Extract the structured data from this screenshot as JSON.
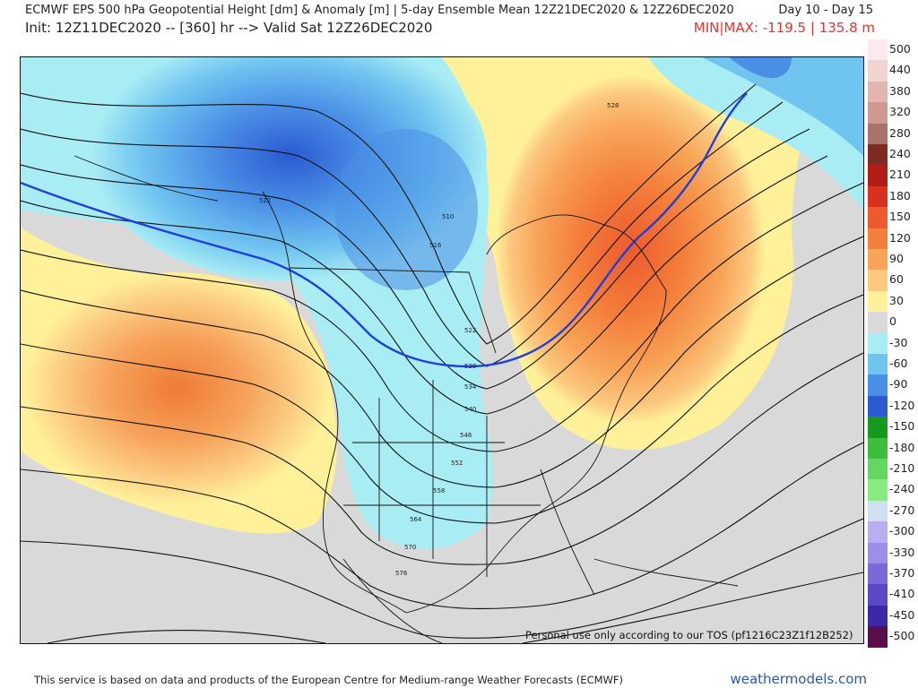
{
  "header": {
    "title": "ECMWF EPS 500 hPa Geopotential Height [dm] & Anomaly [m] | 5-day Ensemble Mean 12Z21DEC2020 & 12Z26DEC2020",
    "days": "Day 10 - Day 15",
    "init": "Init: 12Z11DEC2020 -- [360] hr --> Valid Sat 12Z26DEC2020",
    "minmax": "MIN|MAX: -119.5 | 135.8 m"
  },
  "colorbar": {
    "labels": [
      "500",
      "440",
      "380",
      "320",
      "280",
      "240",
      "210",
      "180",
      "150",
      "120",
      "90",
      "60",
      "30",
      "0",
      "-30",
      "-60",
      "-90",
      "-120",
      "-150",
      "-180",
      "-210",
      "-240",
      "-270",
      "-300",
      "-330",
      "-370",
      "-410",
      "-450",
      "-500"
    ],
    "colors": [
      "#fbe9ee",
      "#f1d3d1",
      "#e2b5b0",
      "#cf9890",
      "#a7736b",
      "#7e2b24",
      "#b31d18",
      "#d8311f",
      "#ec5a2e",
      "#f47f3b",
      "#f8a559",
      "#fbc980",
      "#fff09a",
      "#d9d9d9",
      "#a8ecf4",
      "#70c4f0",
      "#4a8fe6",
      "#2a5bd1",
      "#149a1c",
      "#3cbd3c",
      "#62d762",
      "#8aea82",
      "#cfe0f2",
      "#b8aef0",
      "#9a8ee8",
      "#7a6ad8",
      "#5c48c4",
      "#3a2aa8",
      "#5a0e4c"
    ]
  },
  "map": {
    "contour_labels": [
      "522",
      "528",
      "534",
      "540",
      "546",
      "552",
      "558",
      "564",
      "570",
      "576",
      "516",
      "510",
      "528",
      "522"
    ],
    "tos": "Personal use only according to our TOS (pf1216C23Z1f12B252)"
  },
  "footer": {
    "attribution": "This service is based on data and products of the European Centre for Medium-range Weather Forecasts (ECMWF)",
    "site": "weathermodels.com"
  }
}
